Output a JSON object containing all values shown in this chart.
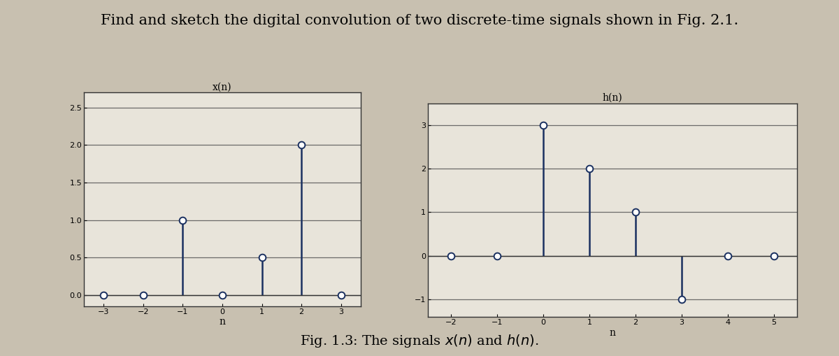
{
  "title_text": "Find and sketch the digital convolution of two discrete-time signals shown in Fig. 2.1.",
  "fig_caption": "Fig. 1.3: The signals $x(n)$ and $h(n)$.",
  "x_signal": {
    "n": [
      -3,
      -2,
      -1,
      0,
      1,
      2,
      3
    ],
    "values": [
      0,
      0,
      1,
      0,
      0.5,
      2,
      0
    ],
    "title": "x(n)",
    "xlabel": "n",
    "xlim": [
      -3.5,
      3.5
    ],
    "ylim": [
      -0.15,
      2.7
    ],
    "yticks": [
      0,
      0.5,
      1,
      1.5,
      2,
      2.5
    ],
    "xticks": [
      -3,
      -2,
      -1,
      0,
      1,
      2,
      3
    ]
  },
  "h_signal": {
    "n": [
      -2,
      -1,
      0,
      1,
      2,
      3,
      4,
      5
    ],
    "values": [
      0,
      0,
      3,
      2,
      1,
      -1,
      0,
      0
    ],
    "title": "h(n)",
    "xlabel": "n",
    "xlim": [
      -2.5,
      5.5
    ],
    "ylim": [
      -1.4,
      3.5
    ],
    "yticks": [
      -1,
      0,
      1,
      2,
      3
    ],
    "xticks": [
      -2,
      -1,
      0,
      1,
      2,
      3,
      4,
      5
    ]
  },
  "stem_color": "#1a3060",
  "marker_facecolor": "white",
  "marker_edgecolor": "#1a3060",
  "marker_size": 7,
  "stem_linewidth": 1.8,
  "outer_bg": "#c8c0b0",
  "plot_bg": "#ddd8cc",
  "plot_inner_bg": "#e8e4da",
  "title_fontsize": 15,
  "label_fontsize": 9,
  "tick_fontsize": 8,
  "caption_fontsize": 14,
  "grid_color": "#555555",
  "grid_linewidth": 0.9,
  "spine_color": "#333333",
  "spine_linewidth": 1.0
}
